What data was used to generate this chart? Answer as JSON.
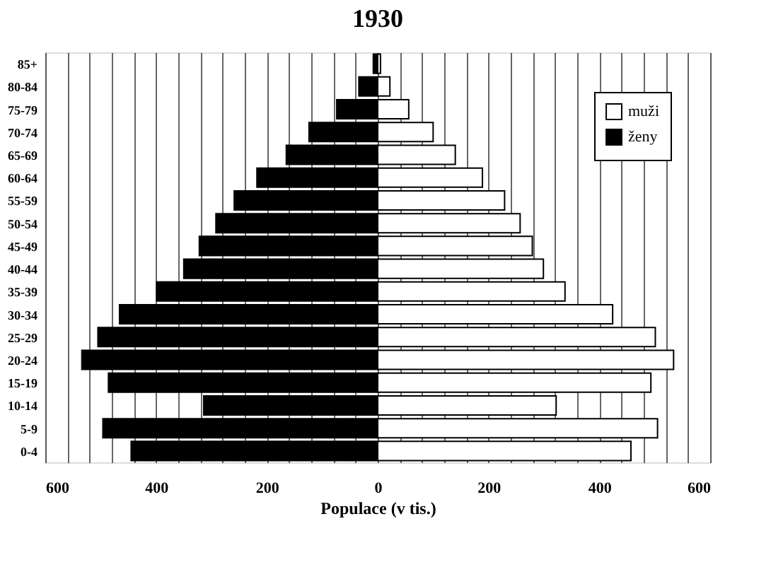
{
  "chart_data": {
    "type": "bar",
    "orientation": "horizontal",
    "title": "1930",
    "xlabel": "Populace (v tis.)",
    "categories": [
      "85+",
      "80-84",
      "75-79",
      "70-74",
      "65-69",
      "60-64",
      "55-59",
      "50-54",
      "45-49",
      "40-44",
      "35-39",
      "30-34",
      "25-29",
      "20-24",
      "15-19",
      "10-14",
      "5-9",
      "0-4"
    ],
    "series": [
      {
        "name": "muži",
        "color": "#ffffff",
        "values": [
          5,
          22,
          56,
          100,
          140,
          189,
          229,
          257,
          279,
          299,
          338,
          424,
          501,
          534,
          493,
          322,
          505,
          457
        ]
      },
      {
        "name": "ženy",
        "color": "#000000",
        "values": [
          -8,
          -34,
          -74,
          -124,
          -165,
          -218,
          -259,
          -292,
          -322,
          -350,
          -399,
          -466,
          -505,
          -534,
          -486,
          -314,
          -496,
          -445
        ]
      }
    ],
    "xlim": [
      -600,
      600
    ],
    "xticks": [
      {
        "value": -600,
        "label": "600"
      },
      {
        "value": -560,
        "label": null
      },
      {
        "value": -520,
        "label": null
      },
      {
        "value": -480,
        "label": null
      },
      {
        "value": -440,
        "label": null
      },
      {
        "value": -400,
        "label": "400"
      },
      {
        "value": -360,
        "label": null
      },
      {
        "value": -320,
        "label": null
      },
      {
        "value": -280,
        "label": null
      },
      {
        "value": -240,
        "label": null
      },
      {
        "value": -200,
        "label": "200"
      },
      {
        "value": -160,
        "label": null
      },
      {
        "value": -120,
        "label": null
      },
      {
        "value": -80,
        "label": null
      },
      {
        "value": -40,
        "label": null
      },
      0,
      {
        "value": 40,
        "label": null
      },
      {
        "value": 80,
        "label": null
      },
      {
        "value": 120,
        "label": null
      },
      {
        "value": 160,
        "label": null
      },
      200,
      {
        "value": 240,
        "label": null
      },
      {
        "value": 280,
        "label": null
      },
      {
        "value": 320,
        "label": null
      },
      {
        "value": 360,
        "label": null
      },
      400,
      {
        "value": 440,
        "label": null
      },
      {
        "value": 480,
        "label": null
      },
      {
        "value": 520,
        "label": null
      },
      {
        "value": 560,
        "label": null
      },
      600
    ],
    "grid": "x",
    "legend": "top right",
    "stacked": true
  }
}
